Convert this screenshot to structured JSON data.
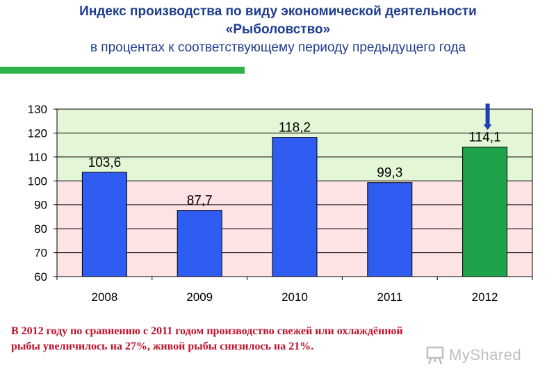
{
  "header": {
    "title_line1": "Индекс производства по виду экономической деятельности",
    "title_line2": "«Рыболовство»",
    "subtitle": "в процентах к соответствующему периоду предыдущего года"
  },
  "colors": {
    "title": "#1f3d8f",
    "accent_bar": "#2db34a",
    "bar_default": "#2f5df2",
    "bar_highlight": "#1fa34a",
    "band_above_100": "#e3f7d6",
    "band_below_100": "#fde3e3",
    "arrow": "#1f3db5",
    "note_text": "#c0102a"
  },
  "chart_data": {
    "type": "bar",
    "title": "",
    "xlabel": "",
    "ylabel": "",
    "categories": [
      "2008",
      "2009",
      "2010",
      "2011",
      "2012"
    ],
    "values": [
      103.6,
      87.7,
      118.2,
      99.3,
      114.1
    ],
    "value_labels": [
      "103,6",
      "87,7",
      "118,2",
      "99,3",
      "114,1"
    ],
    "highlight_index": 4,
    "ylim": [
      60,
      130
    ],
    "yticks": [
      60,
      70,
      80,
      90,
      100,
      110,
      120,
      130
    ],
    "reference_line": 100,
    "grid": true,
    "legend": "none",
    "annotation": "arrow above 2012 bar"
  },
  "note": {
    "line1": "В 2012 году по сравнению с 2011 годом производство свежей или охлаждённой",
    "line2": "рыбы увеличилось на 27%,  живой рыбы снизилось на 21%."
  },
  "watermark": {
    "text": "MyShared",
    "icon": "presentation-board-icon"
  }
}
